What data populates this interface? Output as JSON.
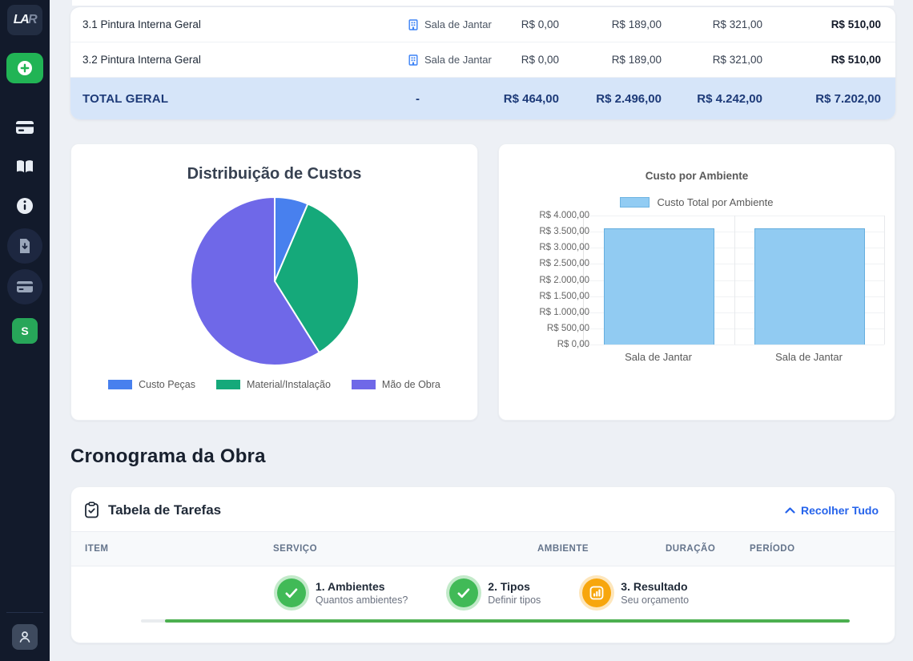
{
  "sidebar": {
    "logo_text_main": "LA",
    "logo_text_dim": "R",
    "items": [
      {
        "name": "new-item",
        "icon": "plus-circle-icon"
      },
      {
        "name": "payments",
        "icon": "credit-card-icon"
      },
      {
        "name": "catalog",
        "icon": "book-open-icon"
      },
      {
        "name": "info",
        "icon": "info-circle-icon"
      },
      {
        "name": "export-file",
        "icon": "file-download-icon"
      },
      {
        "name": "cards",
        "icon": "card-icon"
      }
    ],
    "workspace_initial": "S"
  },
  "summary_table": {
    "rows": [
      {
        "name": "3.1 Pintura Interna Geral",
        "ambiente": "Sala de Jantar",
        "pecas": "R$ 0,00",
        "material": "R$ 189,00",
        "mao_de_obra": "R$ 321,00",
        "total": "R$ 510,00"
      },
      {
        "name": "3.2 Pintura Interna Geral",
        "ambiente": "Sala de Jantar",
        "pecas": "R$ 0,00",
        "material": "R$ 189,00",
        "mao_de_obra": "R$ 321,00",
        "total": "R$ 510,00"
      }
    ],
    "total_row": {
      "label": "TOTAL GERAL",
      "ambiente": "-",
      "pecas": "R$ 464,00",
      "material": "R$ 2.496,00",
      "mao_de_obra": "R$ 4.242,00",
      "total": "R$ 7.202,00"
    }
  },
  "chart_data": [
    {
      "type": "pie",
      "title": "Distribuição de Custos",
      "labels": [
        "Custo Peças",
        "Material/Instalação",
        "Mão de Obra"
      ],
      "values": [
        464,
        2496,
        4242
      ],
      "percentages": [
        6.4,
        34.7,
        58.9
      ],
      "colors": [
        "#4880ee",
        "#15a97a",
        "#6f68e8"
      ],
      "legend_position": "bottom",
      "start_angle_deg": 0,
      "direction": "clockwise"
    },
    {
      "type": "bar",
      "title": "Custo por Ambiente",
      "legend": "Custo Total por Ambiente",
      "categories": [
        "Sala de Jantar",
        "Sala de Jantar"
      ],
      "values": [
        3601,
        3601
      ],
      "ylim": [
        0,
        4000
      ],
      "tick_step": 500,
      "tick_labels_top_down": [
        "R$ 4.000,00",
        "R$ 3.500,00",
        "R$ 3.000,00",
        "R$ 2.500,00",
        "R$ 2.000,00",
        "R$ 1.500,00",
        "R$ 1.000,00",
        "R$ 500,00",
        "R$ 0,00"
      ],
      "bar_color": "#91cbf2",
      "bar_border_color": "#65aede",
      "grid": true,
      "legend_position": "top"
    }
  ],
  "cronograma": {
    "title": "Cronograma da Obra"
  },
  "tasks": {
    "title": "Tabela de Tarefas",
    "collapse_label": "Recolher Tudo",
    "columns": [
      "ITEM",
      "SERVIÇO",
      "AMBIENTE",
      "DURAÇÃO",
      "PERÍODO"
    ]
  },
  "stepper": {
    "steps": [
      {
        "title": "1. Ambientes",
        "subtitle": "Quantos ambientes?",
        "state": "done"
      },
      {
        "title": "2. Tipos",
        "subtitle": "Definir tipos",
        "state": "done"
      },
      {
        "title": "3. Resultado",
        "subtitle": "Seu orçamento",
        "state": "current"
      }
    ],
    "progress_percent": 96.6
  },
  "colors": {
    "sidebar_bg": "#121a2b",
    "accent_green": "#21b455",
    "link_blue": "#2563eb",
    "total_row_bg": "#d6e5f9",
    "total_row_text": "#1d3a78",
    "progress_green": "#4caf50",
    "step_current_orange": "#f7a60d",
    "background": "#edf0f5"
  }
}
